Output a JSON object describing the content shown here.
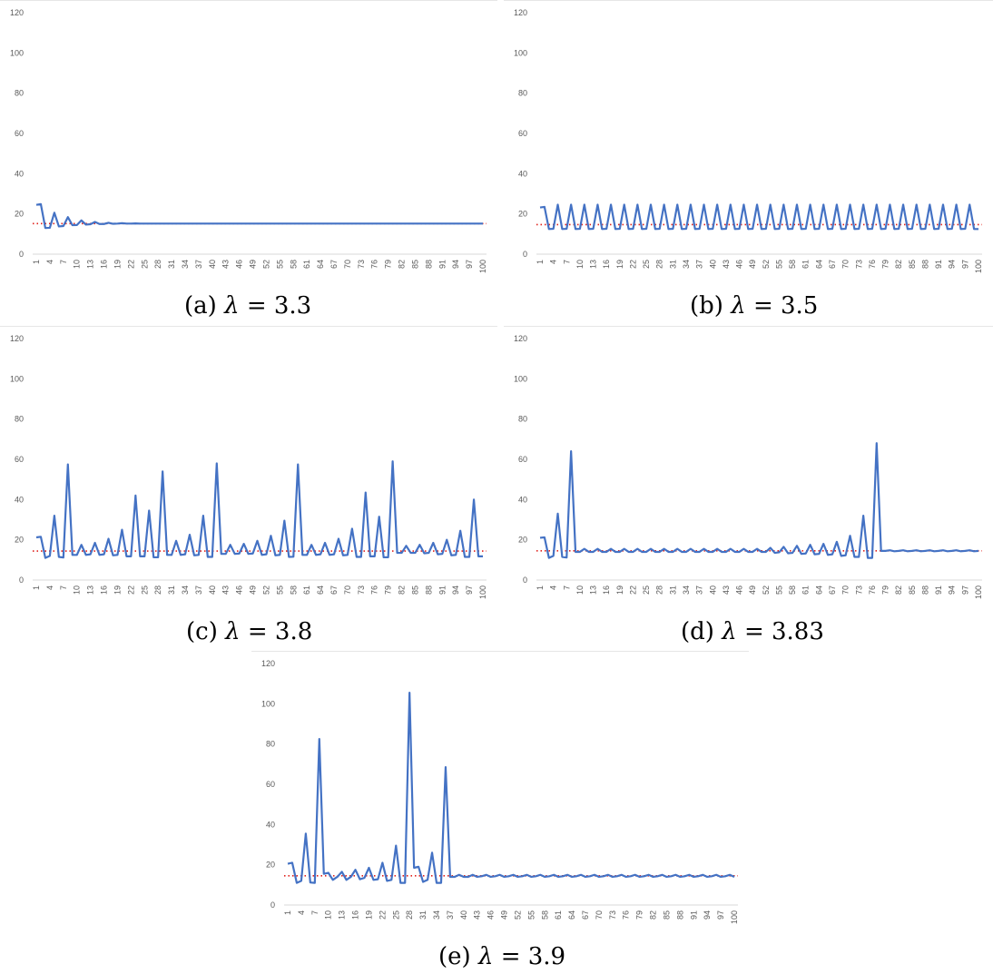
{
  "colors": {
    "series": "#4472C4",
    "fixed_point": "#E0201B",
    "axis": "#D9D9D9",
    "tick_text": "#595959"
  },
  "y_ticks": [
    "0",
    "20",
    "40",
    "60",
    "80",
    "100",
    "120"
  ],
  "x_ticks": [
    "1",
    "4",
    "7",
    "10",
    "13",
    "16",
    "19",
    "22",
    "25",
    "28",
    "31",
    "34",
    "37",
    "40",
    "43",
    "46",
    "49",
    "52",
    "55",
    "58",
    "61",
    "64",
    "67",
    "70",
    "73",
    "76",
    "79",
    "82",
    "85",
    "88",
    "91",
    "94",
    "97",
    "100"
  ],
  "chart_data": [
    {
      "id": "a",
      "type": "line",
      "caption": {
        "label": "(a)",
        "lambda": "λ",
        "eq": "= 3.3"
      },
      "ylim": [
        0,
        120
      ],
      "x_range": [
        1,
        100
      ],
      "fixed_point": 15.2,
      "series": [
        {
          "values": [
            24.5,
            24.9,
            13.0,
            13.1,
            20.6,
            13.8,
            14.0,
            18.4,
            14.4,
            14.5,
            16.8,
            14.7,
            14.9,
            16.0,
            15.0,
            15.0,
            15.6,
            15.1,
            15.2,
            15.4,
            15.2,
            15.2,
            15.3,
            15.2,
            15.2,
            15.2,
            15.2,
            15.2,
            15.2,
            15.2,
            15.2,
            15.2,
            15.2,
            15.2,
            15.2,
            15.2,
            15.2,
            15.2,
            15.2,
            15.2,
            15.2,
            15.2,
            15.2,
            15.2,
            15.2,
            15.2,
            15.2,
            15.2,
            15.2,
            15.2,
            15.2,
            15.2,
            15.2,
            15.2,
            15.2,
            15.2,
            15.2,
            15.2,
            15.2,
            15.2,
            15.2,
            15.2,
            15.2,
            15.2,
            15.2,
            15.2,
            15.2,
            15.2,
            15.2,
            15.2,
            15.2,
            15.2,
            15.2,
            15.2,
            15.2,
            15.2,
            15.2,
            15.2,
            15.2,
            15.2,
            15.2,
            15.2,
            15.2,
            15.2,
            15.2,
            15.2,
            15.2,
            15.2,
            15.2,
            15.2,
            15.2,
            15.2,
            15.2,
            15.2,
            15.2,
            15.2,
            15.2,
            15.2,
            15.2,
            15.2
          ]
        }
      ]
    },
    {
      "id": "b",
      "type": "line",
      "caption": {
        "label": "(b)",
        "lambda": "λ",
        "eq": "= 3.5"
      },
      "ylim": [
        0,
        120
      ],
      "x_range": [
        1,
        100
      ],
      "fixed_point": 14.7,
      "series": [
        {
          "values": [
            23.2,
            23.5,
            12.5,
            12.6,
            24.6,
            12.5,
            12.6,
            24.6,
            12.5,
            12.6,
            24.6,
            12.5,
            12.6,
            24.6,
            12.5,
            12.6,
            24.6,
            12.5,
            12.6,
            24.6,
            12.5,
            12.6,
            24.6,
            12.5,
            12.6,
            24.6,
            12.5,
            12.6,
            24.6,
            12.5,
            12.6,
            24.6,
            12.5,
            12.6,
            24.6,
            12.5,
            12.6,
            24.6,
            12.5,
            12.6,
            24.6,
            12.5,
            12.6,
            24.6,
            12.5,
            12.6,
            24.6,
            12.5,
            12.6,
            24.6,
            12.5,
            12.6,
            24.6,
            12.5,
            12.6,
            24.6,
            12.5,
            12.6,
            24.6,
            12.5,
            12.6,
            24.6,
            12.5,
            12.6,
            24.6,
            12.5,
            12.6,
            24.6,
            12.5,
            12.6,
            24.6,
            12.5,
            12.6,
            24.6,
            12.5,
            12.6,
            24.6,
            12.5,
            12.6,
            24.6,
            12.5,
            12.6,
            24.6,
            12.5,
            12.6,
            24.6,
            12.5,
            12.6,
            24.6,
            12.5,
            12.6,
            24.6,
            12.5,
            12.6,
            24.6,
            12.5,
            12.6,
            24.6,
            12.5,
            12.5
          ]
        }
      ]
    },
    {
      "id": "c",
      "type": "line",
      "caption": {
        "label": "(c)",
        "lambda": "λ",
        "eq": "= 3.8"
      },
      "ylim": [
        0,
        120
      ],
      "x_range": [
        1,
        100
      ],
      "fixed_point": 14.4,
      "series": [
        {
          "values": [
            21.2,
            21.5,
            11.0,
            12.0,
            32.0,
            11.5,
            11.2,
            57.5,
            12.5,
            12.5,
            17.5,
            12.5,
            12.8,
            18.5,
            12.5,
            12.8,
            20.5,
            12.3,
            12.5,
            25.0,
            11.8,
            11.8,
            42.0,
            11.8,
            11.8,
            34.5,
            11.3,
            11.3,
            54.0,
            12.5,
            12.5,
            19.5,
            12.5,
            12.8,
            22.5,
            12.3,
            12.5,
            32.0,
            11.5,
            11.5,
            58.0,
            13.0,
            13.0,
            17.5,
            13.0,
            13.2,
            18.0,
            13.0,
            13.2,
            19.5,
            12.5,
            12.8,
            22.0,
            12.3,
            12.5,
            29.5,
            11.5,
            11.6,
            57.5,
            12.5,
            12.5,
            17.5,
            12.5,
            12.8,
            18.5,
            12.5,
            12.8,
            20.5,
            12.3,
            12.5,
            25.5,
            11.5,
            11.5,
            43.5,
            11.8,
            11.8,
            31.5,
            11.3,
            11.3,
            59.0,
            13.5,
            13.5,
            17.0,
            13.5,
            13.5,
            17.5,
            13.3,
            13.5,
            18.5,
            12.8,
            13.0,
            20.0,
            12.3,
            12.5,
            24.5,
            11.5,
            11.5,
            40.0,
            11.8,
            11.8
          ]
        }
      ]
    },
    {
      "id": "d",
      "type": "line",
      "caption": {
        "label": "(d)",
        "lambda": "λ",
        "eq": "= 3.83"
      },
      "ylim": [
        0,
        120
      ],
      "x_range": [
        1,
        100
      ],
      "fixed_point": 14.5,
      "series": [
        {
          "values": [
            21.0,
            21.2,
            11.0,
            12.0,
            33.0,
            11.5,
            11.2,
            64.0,
            14.0,
            14.0,
            15.5,
            14.0,
            14.0,
            15.5,
            14.0,
            14.0,
            15.5,
            14.0,
            14.0,
            15.5,
            14.0,
            14.0,
            15.5,
            14.0,
            14.0,
            15.5,
            14.0,
            14.0,
            15.5,
            14.0,
            14.0,
            15.5,
            14.0,
            14.0,
            15.5,
            14.0,
            14.0,
            15.5,
            14.0,
            14.0,
            15.5,
            14.0,
            14.0,
            15.5,
            14.0,
            14.0,
            15.5,
            14.0,
            14.0,
            15.5,
            14.0,
            14.0,
            16.0,
            13.5,
            13.8,
            16.5,
            13.3,
            13.5,
            17.0,
            13.0,
            13.2,
            17.5,
            12.8,
            13.0,
            18.0,
            12.5,
            12.8,
            19.0,
            12.0,
            12.3,
            22.0,
            11.5,
            11.5,
            32.0,
            11.0,
            11.0,
            68.0,
            14.5,
            14.5,
            14.8,
            14.3,
            14.5,
            14.8,
            14.3,
            14.5,
            14.8,
            14.3,
            14.5,
            14.8,
            14.3,
            14.5,
            14.8,
            14.3,
            14.5,
            14.8,
            14.3,
            14.5,
            14.8,
            14.3,
            14.5
          ]
        }
      ]
    },
    {
      "id": "e",
      "type": "line",
      "caption": {
        "label": "(e)",
        "lambda": "λ",
        "eq": "= 3.9"
      },
      "ylim": [
        0,
        120
      ],
      "x_range": [
        1,
        100
      ],
      "fixed_point": 14.5,
      "series": [
        {
          "values": [
            20.5,
            21.0,
            11.0,
            12.0,
            35.5,
            11.2,
            11.0,
            82.5,
            15.5,
            16.0,
            12.5,
            14.0,
            16.5,
            12.5,
            14.0,
            17.5,
            12.8,
            13.5,
            18.5,
            12.5,
            12.8,
            21.0,
            12.0,
            12.5,
            29.5,
            11.0,
            11.0,
            105.5,
            18.5,
            19.0,
            11.5,
            12.5,
            26.0,
            11.0,
            11.0,
            68.5,
            14.0,
            14.0,
            15.0,
            14.0,
            14.0,
            15.0,
            14.0,
            14.3,
            15.0,
            14.0,
            14.3,
            15.0,
            14.0,
            14.3,
            15.0,
            14.0,
            14.3,
            15.0,
            14.0,
            14.3,
            15.0,
            14.0,
            14.3,
            15.0,
            14.0,
            14.3,
            15.0,
            14.0,
            14.3,
            15.0,
            14.0,
            14.3,
            15.0,
            14.0,
            14.3,
            15.0,
            14.0,
            14.3,
            15.0,
            14.0,
            14.3,
            15.0,
            14.0,
            14.3,
            15.0,
            14.0,
            14.3,
            15.0,
            14.0,
            14.3,
            15.0,
            14.0,
            14.3,
            15.0,
            14.0,
            14.3,
            15.0,
            14.0,
            14.3,
            15.0,
            14.0,
            14.3,
            15.0,
            14.0
          ]
        }
      ]
    }
  ]
}
